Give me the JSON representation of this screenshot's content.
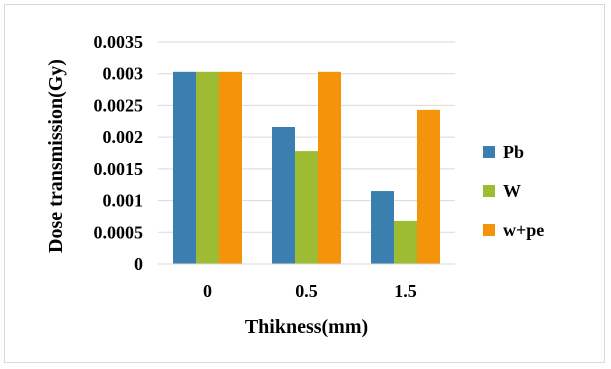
{
  "chart_data": {
    "type": "bar",
    "categories": [
      "0",
      "0.5",
      "1.5"
    ],
    "series": [
      {
        "name": "Pb",
        "values": [
          0.00303,
          0.00216,
          0.00115
        ],
        "color": "#3a7fb0"
      },
      {
        "name": "W",
        "values": [
          0.00303,
          0.00178,
          0.00068
        ],
        "color": "#9dbb33"
      },
      {
        "name": "w+pe",
        "values": [
          0.00303,
          0.00303,
          0.00243
        ],
        "color": "#f5930a"
      }
    ],
    "xlabel": "Thikness(mm)",
    "ylabel": "Dose transmission(Gy)",
    "ylim": [
      0,
      0.0035
    ],
    "yticks": [
      "0",
      "0.0005",
      "0.001",
      "0.0015",
      "0.002",
      "0.0025",
      "0.003",
      "0.0035"
    ],
    "grid": true,
    "legend_position": "right"
  }
}
